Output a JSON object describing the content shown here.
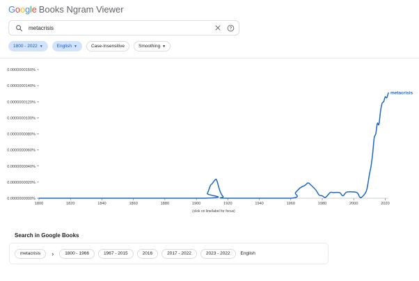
{
  "header": {
    "logo_letters": [
      {
        "char": "G",
        "color": "#4285F4"
      },
      {
        "char": "o",
        "color": "#EA4335"
      },
      {
        "char": "o",
        "color": "#FBBC05"
      },
      {
        "char": "g",
        "color": "#4285F4"
      },
      {
        "char": "l",
        "color": "#34A853"
      },
      {
        "char": "e",
        "color": "#EA4335"
      }
    ],
    "app_name": "Books Ngram Viewer"
  },
  "search": {
    "value": "metacrisis",
    "icon": "search-icon",
    "clear_icon": "close-icon",
    "help_icon": "help-icon"
  },
  "filters": {
    "year_range": "1800 - 2022",
    "language": "English",
    "case": "Case-Insensitive",
    "smoothing": "Smoothing"
  },
  "chart_data": {
    "type": "line",
    "title": "",
    "xlabel": "",
    "ylabel": "",
    "x_ticks": [
      1800,
      1820,
      1840,
      1860,
      1880,
      1900,
      1920,
      1940,
      1960,
      1980,
      2000,
      2020
    ],
    "xlim": [
      1800,
      2022
    ],
    "y_ticks": [
      "0.0000000000%",
      "0.0000000020%",
      "0.0000000040%",
      "0.0000000060%",
      "0.0000000080%",
      "0.0000000100%",
      "0.0000000120%",
      "0.0000000140%",
      "0.0000000160%"
    ],
    "ylim": [
      0,
      1.6e-08
    ],
    "caption": "(click on line/label for focus)",
    "series": [
      {
        "name": "metacrisis",
        "color": "#1a67c9",
        "x": [
          1800,
          1905,
          1907,
          1909,
          1910,
          1912,
          1913,
          1915,
          1917,
          1919,
          1960,
          1963,
          1966,
          1969,
          1971,
          1973,
          1976,
          1978,
          1980,
          1982,
          1985,
          1987,
          1991,
          1993,
          1995,
          1997,
          2002,
          2004,
          2006,
          2008,
          2009,
          2010,
          2011,
          2012,
          2013,
          2014,
          2015,
          2016,
          2017,
          2018,
          2019,
          2020,
          2021,
          2022
        ],
        "y": [
          0,
          0,
          6e-10,
          1.6e-09,
          1.8e-09,
          2.3e-09,
          2.2e-09,
          9e-10,
          2e-10,
          0,
          0,
          7e-10,
          1.3e-09,
          1.6e-09,
          1.9e-09,
          1.6e-09,
          1e-09,
          4e-10,
          3e-10,
          1e-10,
          7e-10,
          7e-10,
          7e-10,
          3e-10,
          7e-10,
          8e-10,
          7e-10,
          1e-10,
          3e-10,
          9e-10,
          1.8e-09,
          3e-09,
          4e-09,
          5.5e-09,
          7.5e-09,
          8e-09,
          9.3e-09,
          9.2e-09,
          1.08e-08,
          1.18e-08,
          1.2e-08,
          1.26e-08,
          1.25e-08,
          1.31e-08
        ]
      }
    ]
  },
  "books": {
    "title": "Search in Google Books",
    "term": "metacrisis",
    "arrow": "›",
    "ranges": [
      "1800 - 1966",
      "1967 - 2015",
      "2016",
      "2017 - 2022",
      "2023 - 2022"
    ],
    "language": "English"
  }
}
